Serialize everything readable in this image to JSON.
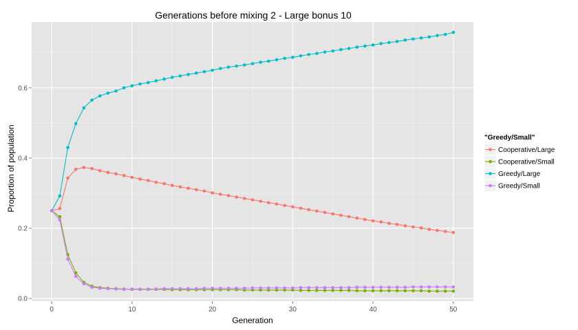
{
  "chart_data": {
    "type": "line",
    "title": "Generations before mixing 2 - Large bonus 10",
    "xlabel": "Generation",
    "ylabel": "Proportion of population",
    "xlim": [
      -2.5,
      52.5
    ],
    "ylim": [
      -0.0075,
      0.7875
    ],
    "x_ticks": [
      0,
      10,
      20,
      30,
      40,
      50
    ],
    "x_tick_labels": [
      "0",
      "10",
      "20",
      "30",
      "40",
      "50"
    ],
    "y_ticks": [
      0.0,
      0.2,
      0.4,
      0.6
    ],
    "y_tick_labels": [
      "0.0",
      "0.2",
      "0.4",
      "0.6"
    ],
    "grid": true,
    "legend": {
      "title": "\"Greedy/Small\"",
      "position": "right",
      "entries": [
        "Cooperative/Large",
        "Cooperative/Small",
        "Greedy/Large",
        "Greedy/Small"
      ]
    },
    "x": [
      0,
      1,
      2,
      3,
      4,
      5,
      6,
      7,
      8,
      9,
      10,
      11,
      12,
      13,
      14,
      15,
      16,
      17,
      18,
      19,
      20,
      21,
      22,
      23,
      24,
      25,
      26,
      27,
      28,
      29,
      30,
      31,
      32,
      33,
      34,
      35,
      36,
      37,
      38,
      39,
      40,
      41,
      42,
      43,
      44,
      45,
      46,
      47,
      48,
      49,
      50
    ],
    "series": [
      {
        "name": "Cooperative/Large",
        "color": "#F8766D",
        "values": [
          0.25,
          0.256,
          0.343,
          0.368,
          0.373,
          0.37,
          0.364,
          0.359,
          0.355,
          0.35,
          0.345,
          0.34,
          0.336,
          0.331,
          0.327,
          0.322,
          0.318,
          0.314,
          0.31,
          0.306,
          0.301,
          0.297,
          0.293,
          0.289,
          0.285,
          0.281,
          0.277,
          0.273,
          0.269,
          0.265,
          0.261,
          0.257,
          0.253,
          0.249,
          0.245,
          0.241,
          0.237,
          0.233,
          0.229,
          0.225,
          0.221,
          0.218,
          0.214,
          0.211,
          0.207,
          0.204,
          0.201,
          0.197,
          0.194,
          0.191,
          0.188
        ]
      },
      {
        "name": "Cooperative/Small",
        "color": "#7CAE00",
        "values": [
          0.25,
          0.233,
          0.125,
          0.073,
          0.046,
          0.035,
          0.031,
          0.029,
          0.028,
          0.027,
          0.026,
          0.026,
          0.026,
          0.026,
          0.026,
          0.025,
          0.025,
          0.025,
          0.025,
          0.025,
          0.025,
          0.025,
          0.025,
          0.025,
          0.024,
          0.024,
          0.024,
          0.024,
          0.024,
          0.024,
          0.024,
          0.023,
          0.023,
          0.023,
          0.023,
          0.023,
          0.023,
          0.023,
          0.022,
          0.022,
          0.022,
          0.022,
          0.022,
          0.022,
          0.022,
          0.022,
          0.022,
          0.021,
          0.021,
          0.021,
          0.021
        ]
      },
      {
        "name": "Greedy/Large",
        "color": "#00BFC4",
        "values": [
          0.25,
          0.292,
          0.43,
          0.498,
          0.543,
          0.565,
          0.577,
          0.585,
          0.591,
          0.6,
          0.606,
          0.611,
          0.615,
          0.62,
          0.625,
          0.63,
          0.634,
          0.638,
          0.642,
          0.646,
          0.65,
          0.655,
          0.659,
          0.662,
          0.665,
          0.669,
          0.673,
          0.676,
          0.68,
          0.684,
          0.687,
          0.691,
          0.695,
          0.698,
          0.702,
          0.705,
          0.709,
          0.712,
          0.716,
          0.719,
          0.722,
          0.726,
          0.729,
          0.732,
          0.736,
          0.739,
          0.742,
          0.745,
          0.749,
          0.752,
          0.758
        ]
      },
      {
        "name": "Greedy/Small",
        "color": "#C77CFF",
        "values": [
          0.25,
          0.224,
          0.112,
          0.063,
          0.042,
          0.032,
          0.029,
          0.028,
          0.027,
          0.026,
          0.027,
          0.027,
          0.027,
          0.027,
          0.028,
          0.028,
          0.028,
          0.028,
          0.028,
          0.029,
          0.029,
          0.029,
          0.029,
          0.029,
          0.029,
          0.03,
          0.03,
          0.03,
          0.03,
          0.03,
          0.03,
          0.031,
          0.031,
          0.031,
          0.031,
          0.031,
          0.031,
          0.031,
          0.032,
          0.032,
          0.032,
          0.032,
          0.032,
          0.032,
          0.032,
          0.033,
          0.033,
          0.033,
          0.033,
          0.033,
          0.033
        ]
      }
    ]
  }
}
